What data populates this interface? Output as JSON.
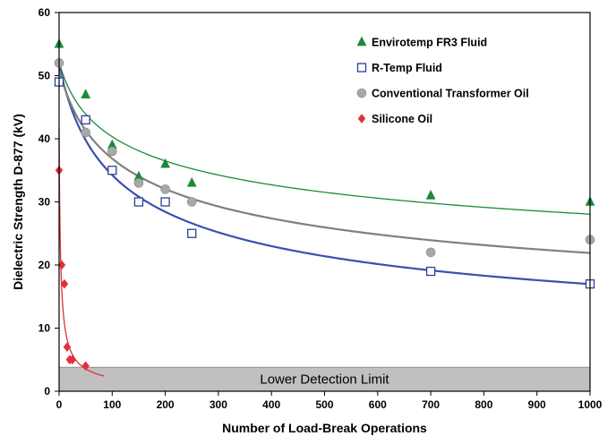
{
  "chart_data": {
    "type": "scatter",
    "title": "",
    "xlabel": "Number of Load-Break Operations",
    "ylabel": "Dielectric Strength D-877 (kV)",
    "xlim": [
      0,
      1000
    ],
    "ylim": [
      0,
      60
    ],
    "x_ticks": [
      0,
      100,
      200,
      300,
      400,
      500,
      600,
      700,
      800,
      900,
      1000
    ],
    "y_ticks": [
      0,
      10,
      20,
      30,
      40,
      50,
      60
    ],
    "grid": false,
    "legend_position": "top-right",
    "annotation": {
      "text": "Lower Detection Limit",
      "y_range": [
        0,
        3.8
      ],
      "color": "#c0c0c0"
    },
    "series": [
      {
        "name": "Envirotemp FR3 Fluid",
        "marker": "triangle",
        "color": "#1a8a3a",
        "line_color": "#1a8a3a",
        "points": [
          [
            0,
            55
          ],
          [
            50,
            47
          ],
          [
            100,
            39
          ],
          [
            150,
            34
          ],
          [
            200,
            36
          ],
          [
            250,
            33
          ],
          [
            700,
            31
          ],
          [
            1000,
            30
          ]
        ]
      },
      {
        "name": "R-Temp Fluid",
        "marker": "square-open",
        "color": "#2a3e9c",
        "line_color": "#3a50b0",
        "points": [
          [
            0,
            49
          ],
          [
            50,
            43
          ],
          [
            100,
            35
          ],
          [
            150,
            30
          ],
          [
            200,
            30
          ],
          [
            250,
            25
          ],
          [
            700,
            19
          ],
          [
            1000,
            17
          ]
        ]
      },
      {
        "name": "Conventional Transformer Oil",
        "marker": "circle",
        "color": "#a8a8a8",
        "line_color": "#808080",
        "points": [
          [
            0,
            52
          ],
          [
            50,
            41
          ],
          [
            100,
            38
          ],
          [
            150,
            33
          ],
          [
            200,
            32
          ],
          [
            250,
            30
          ],
          [
            700,
            22
          ],
          [
            1000,
            24
          ]
        ]
      },
      {
        "name": "Silicone Oil",
        "marker": "diamond",
        "color": "#e0303a",
        "line_color": "#e0303a",
        "points": [
          [
            0,
            35
          ],
          [
            5,
            20
          ],
          [
            10,
            17
          ],
          [
            15,
            7
          ],
          [
            20,
            5
          ],
          [
            25,
            5
          ],
          [
            50,
            4
          ]
        ]
      }
    ],
    "trendlines": [
      {
        "series": "Envirotemp FR3 Fluid",
        "x_range": [
          0,
          1000
        ]
      },
      {
        "series": "R-Temp Fluid",
        "x_range": [
          0,
          1000
        ]
      },
      {
        "series": "Conventional Transformer Oil",
        "x_range": [
          0,
          1000
        ]
      },
      {
        "series": "Silicone Oil",
        "x_range": [
          0,
          85
        ]
      }
    ]
  }
}
